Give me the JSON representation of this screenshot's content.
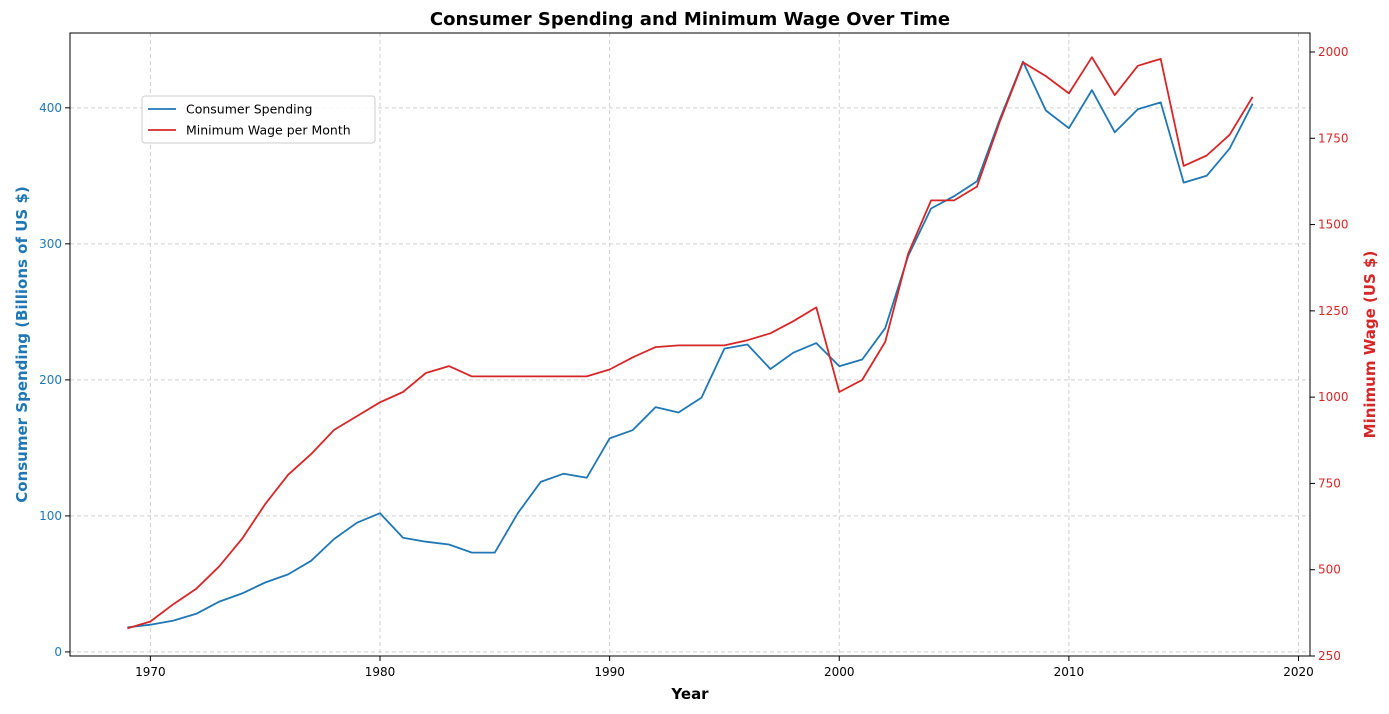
{
  "chart_data": {
    "type": "line",
    "title": "Consumer Spending and Minimum Wage Over Time",
    "xlabel": "Year",
    "ylabel_left": "Consumer Spending (Billions of US $)",
    "ylabel_right": "Minimum Wage (US $)",
    "xlim": [
      1966.5,
      2020.5
    ],
    "ylim_left": [
      -3,
      455
    ],
    "ylim_right": [
      250,
      2055
    ],
    "x_ticks": [
      1970,
      1980,
      1990,
      2000,
      2010,
      2020
    ],
    "y_ticks_left": [
      0,
      100,
      200,
      300,
      400
    ],
    "y_ticks_right": [
      250,
      500,
      750,
      1000,
      1250,
      1500,
      1750,
      2000
    ],
    "grid": true,
    "legend_position": "upper-left",
    "x": [
      1969,
      1970,
      1971,
      1972,
      1973,
      1974,
      1975,
      1976,
      1977,
      1978,
      1979,
      1980,
      1981,
      1982,
      1983,
      1984,
      1985,
      1986,
      1987,
      1988,
      1989,
      1990,
      1991,
      1992,
      1993,
      1994,
      1995,
      1996,
      1997,
      1998,
      1999,
      2000,
      2001,
      2002,
      2003,
      2004,
      2005,
      2006,
      2007,
      2008,
      2009,
      2010,
      2011,
      2012,
      2013,
      2014,
      2015,
      2016,
      2017,
      2018
    ],
    "series": [
      {
        "name": "Consumer Spending",
        "axis": "left",
        "color": "#1f77b4",
        "values": [
          18,
          20,
          23,
          28,
          37,
          43,
          51,
          57,
          67,
          83,
          95,
          102,
          84,
          81,
          79,
          73,
          73,
          102,
          125,
          131,
          128,
          157,
          163,
          180,
          176,
          187,
          223,
          226,
          208,
          220,
          227,
          210,
          215,
          238,
          291,
          326,
          335,
          346,
          392,
          434,
          398,
          385,
          413,
          382,
          399,
          404,
          345,
          350,
          370,
          403
        ]
      },
      {
        "name": "Minimum Wage per Month",
        "axis": "right",
        "color": "#d62728",
        "values": [
          330,
          350,
          400,
          445,
          510,
          590,
          690,
          775,
          835,
          905,
          945,
          985,
          1015,
          1070,
          1090,
          1060,
          1060,
          1060,
          1060,
          1060,
          1060,
          1080,
          1115,
          1145,
          1150,
          1150,
          1150,
          1165,
          1185,
          1220,
          1260,
          1015,
          1050,
          1160,
          1415,
          1570,
          1570,
          1610,
          1800,
          1970,
          1930,
          1880,
          1985,
          1875,
          1960,
          1980,
          1670,
          1700,
          1760,
          1870
        ]
      }
    ]
  }
}
